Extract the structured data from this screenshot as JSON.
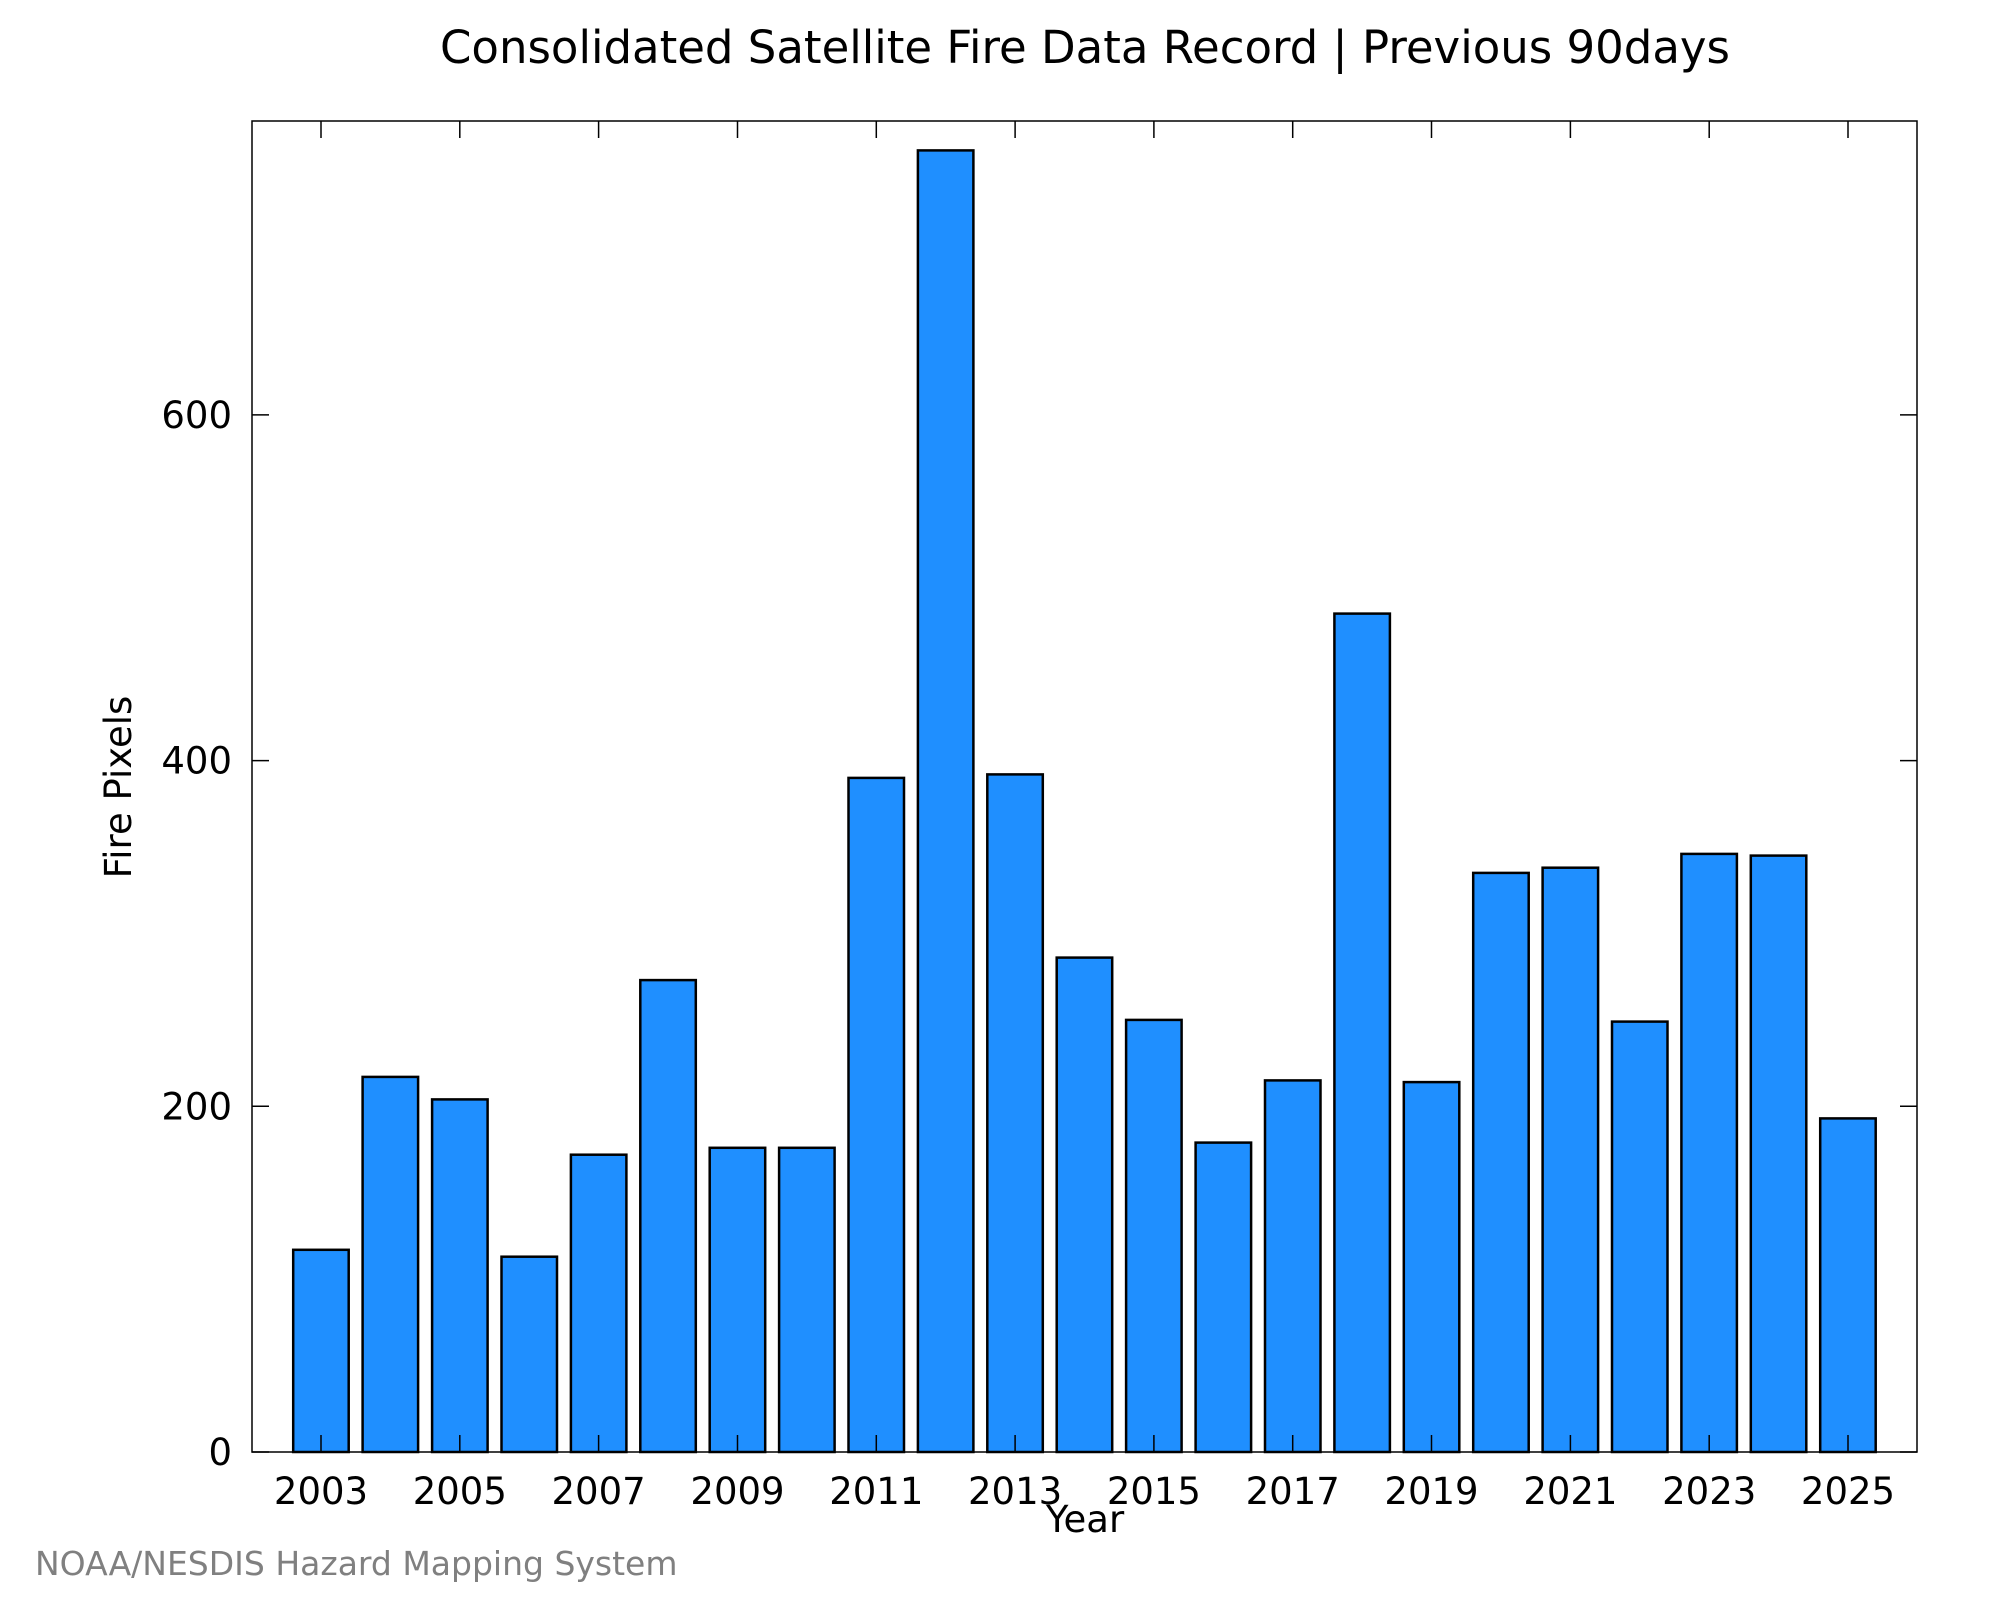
{
  "chart_data": {
    "type": "bar",
    "title": "Consolidated Satellite Fire Data Record | Previous 90days",
    "xlabel": "Year",
    "ylabel": "Fire Pixels",
    "credit": "NOAA/NESDIS Hazard Mapping System",
    "bar_color": "#1f8fff",
    "bar_edge_color": "#000000",
    "x_tick_labels": [
      "2003",
      "2005",
      "2007",
      "2009",
      "2011",
      "2013",
      "2015",
      "2017",
      "2019",
      "2021",
      "2023",
      "2025"
    ],
    "y_ticks": [
      0,
      200,
      400,
      600
    ],
    "ylim": [
      0,
      770
    ],
    "grid": false,
    "categories": [
      "2003",
      "2004",
      "2005",
      "2006",
      "2007",
      "2008",
      "2009",
      "2010",
      "2011",
      "2012",
      "2013",
      "2014",
      "2015",
      "2016",
      "2017",
      "2018",
      "2019",
      "2020",
      "2021",
      "2022",
      "2023",
      "2024",
      "2025"
    ],
    "values": [
      117,
      217,
      204,
      113,
      172,
      273,
      176,
      176,
      390,
      753,
      392,
      286,
      250,
      179,
      215,
      485,
      214,
      335,
      338,
      249,
      346,
      345,
      193
    ]
  }
}
